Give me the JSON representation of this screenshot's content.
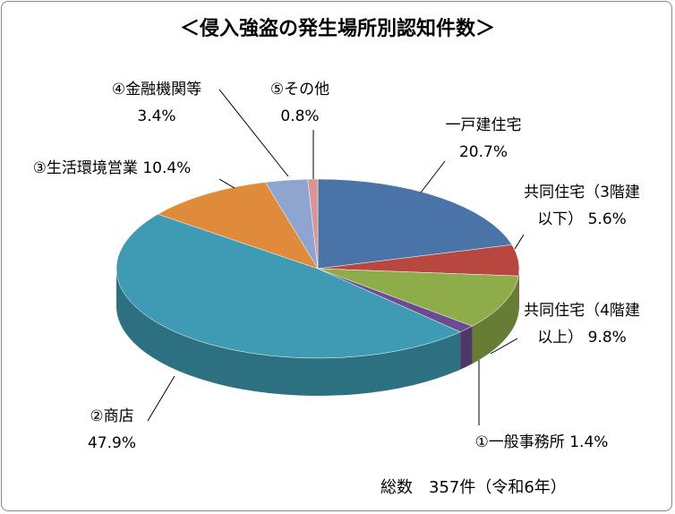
{
  "chart_data": {
    "type": "pie3d",
    "title": "＜侵入強盗の発生場所別認知件数＞",
    "note": "総数　357件（令和6年）",
    "categories": [
      "一戸建住宅",
      "共同住宅（3階建以下）",
      "共同住宅（4階建以上）",
      "①一般事務所",
      "②商店",
      "③生活環境営業",
      "④金融機関等",
      "⑤その他"
    ],
    "values": [
      20.7,
      5.6,
      9.8,
      1.4,
      47.9,
      10.4,
      3.4,
      0.8
    ],
    "value_labels": [
      "20.7%",
      "5.6%",
      "9.8%",
      "1.4%",
      "47.9%",
      "10.4%",
      "3.4%",
      "0.8%"
    ],
    "colors": [
      "#4a74a8",
      "#b8483f",
      "#8fac4a",
      "#6b4c91",
      "#3e9bb3",
      "#e08a3c",
      "#8ea6cf",
      "#d99594"
    ]
  }
}
